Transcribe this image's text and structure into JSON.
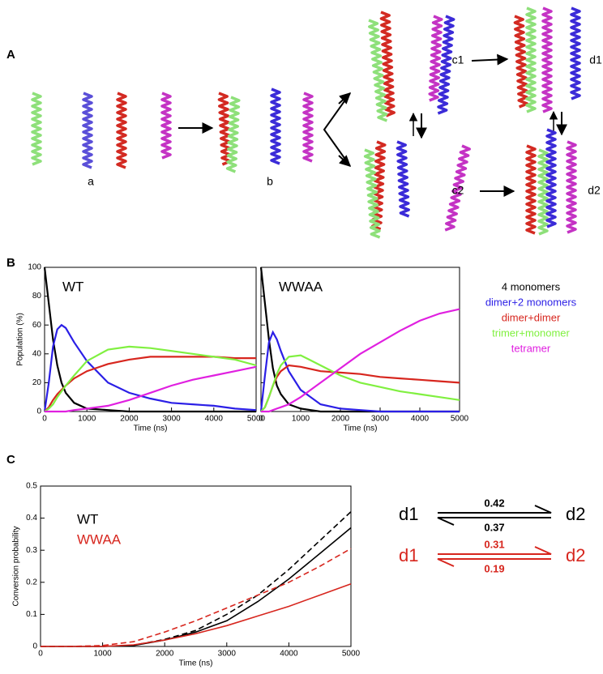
{
  "panel_labels": [
    "A",
    "B",
    "C"
  ],
  "scheme_labels": [
    "a",
    "b",
    "c1",
    "d1",
    "c2",
    "d2"
  ],
  "rate_diagrams": [
    {
      "from": "d1",
      "to": "d2",
      "forward": 0.42,
      "backward": 0.37,
      "color": "#000000"
    },
    {
      "from": "d1",
      "to": "d2",
      "forward": 0.31,
      "backward": 0.19,
      "color": "#d7261e"
    }
  ],
  "chart_data": [
    {
      "type": "line",
      "annotation": "WT",
      "xlabel": "Time (ns)",
      "ylabel": "Population (%)",
      "x": [
        0,
        100,
        200,
        300,
        400,
        500,
        700,
        1000,
        1500,
        2000,
        2500,
        3000,
        3500,
        4000,
        4500,
        5000
      ],
      "xlim": [
        0,
        5000
      ],
      "ylim": [
        0,
        100
      ],
      "xticks": [
        0,
        1000,
        2000,
        3000,
        4000,
        5000
      ],
      "yticks": [
        0,
        20,
        40,
        60,
        80,
        100
      ],
      "series": [
        {
          "color": "#000000",
          "values": [
            100,
            75,
            50,
            32,
            20,
            13,
            6,
            2,
            1,
            0,
            0,
            0,
            0,
            0,
            0,
            0
          ]
        },
        {
          "color": "#2b1fe6",
          "values": [
            0,
            20,
            45,
            57,
            60,
            58,
            48,
            35,
            20,
            13,
            9,
            6,
            5,
            4,
            2,
            1
          ]
        },
        {
          "color": "#d7261e",
          "values": [
            0,
            3,
            8,
            12,
            15,
            18,
            23,
            28,
            33,
            36,
            38,
            38,
            38,
            38,
            37,
            37
          ]
        },
        {
          "color": "#80f040",
          "values": [
            0,
            2,
            5,
            10,
            14,
            18,
            25,
            35,
            43,
            45,
            44,
            42,
            40,
            38,
            36,
            32
          ]
        },
        {
          "color": "#e020e0",
          "values": [
            0,
            0,
            0,
            0,
            0,
            0,
            1,
            2,
            4,
            8,
            13,
            18,
            22,
            25,
            28,
            31
          ]
        }
      ]
    },
    {
      "type": "line",
      "annotation": "WWAA",
      "xlabel": "Time (ns)",
      "x": [
        0,
        100,
        200,
        300,
        400,
        500,
        700,
        1000,
        1500,
        2000,
        2500,
        3000,
        3500,
        4000,
        4500,
        5000
      ],
      "xlim": [
        0,
        5000
      ],
      "ylim": [
        0,
        100
      ],
      "xticks": [
        0,
        1000,
        2000,
        3000,
        4000,
        5000
      ],
      "yticks": [
        0,
        20,
        40,
        60,
        80,
        100
      ],
      "series": [
        {
          "name": "4 monomers",
          "color": "#000000",
          "values": [
            100,
            75,
            50,
            30,
            18,
            12,
            5,
            2,
            0,
            0,
            0,
            0,
            0,
            0,
            0,
            0
          ]
        },
        {
          "name": "dimer+2 monomers",
          "color": "#2b1fe6",
          "values": [
            0,
            25,
            48,
            55,
            50,
            42,
            28,
            15,
            5,
            2,
            1,
            0,
            0,
            0,
            0,
            0
          ]
        },
        {
          "name": "dimer+dimer",
          "color": "#d7261e",
          "values": [
            0,
            3,
            10,
            18,
            24,
            28,
            32,
            31,
            28,
            27,
            26,
            24,
            23,
            22,
            21,
            20
          ]
        },
        {
          "name": "trimer+monomer",
          "color": "#80f040",
          "values": [
            0,
            3,
            10,
            18,
            26,
            32,
            38,
            39,
            32,
            25,
            20,
            17,
            14,
            12,
            10,
            8
          ]
        },
        {
          "name": "tetramer",
          "color": "#e020e0",
          "values": [
            0,
            0,
            0,
            1,
            2,
            3,
            5,
            10,
            20,
            30,
            40,
            48,
            56,
            63,
            68,
            71
          ]
        }
      ]
    },
    {
      "type": "line",
      "xlabel": "Time (ns)",
      "ylabel": "Conversion probability",
      "x": [
        0,
        500,
        1000,
        1500,
        2000,
        2500,
        3000,
        3500,
        4000,
        4500,
        5000
      ],
      "xlim": [
        0,
        5000
      ],
      "ylim": [
        0,
        0.5
      ],
      "xticks": [
        0,
        1000,
        2000,
        3000,
        4000,
        5000
      ],
      "yticks": [
        0,
        0.1,
        0.2,
        0.3,
        0.4,
        0.5
      ],
      "series": [
        {
          "name": "WT",
          "color": "#000000",
          "style": "solid",
          "values": [
            0,
            0,
            0,
            0.003,
            0.02,
            0.045,
            0.08,
            0.14,
            0.21,
            0.29,
            0.37
          ]
        },
        {
          "color": "#000000",
          "style": "dashed",
          "values": [
            0,
            0,
            0,
            0.004,
            0.022,
            0.05,
            0.1,
            0.16,
            0.24,
            0.33,
            0.42
          ]
        },
        {
          "name": "WWAA",
          "color": "#d7261e",
          "style": "solid",
          "values": [
            0,
            0,
            0,
            0.005,
            0.02,
            0.04,
            0.065,
            0.095,
            0.125,
            0.16,
            0.195
          ]
        },
        {
          "color": "#d7261e",
          "style": "dashed",
          "values": [
            0,
            0,
            0.003,
            0.015,
            0.045,
            0.08,
            0.12,
            0.16,
            0.2,
            0.25,
            0.305
          ]
        }
      ]
    }
  ]
}
